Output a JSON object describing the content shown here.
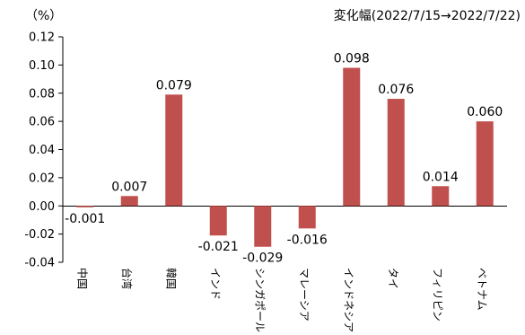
{
  "chart_data": {
    "type": "bar",
    "unit_label": "（%）",
    "title": "変化幅(2022/7/15→2022/7/22)",
    "categories": [
      "中国",
      "台湾",
      "韓国",
      "インド",
      "シンガポール",
      "マレーシア",
      "インドネシア",
      "タイ",
      "フィリピン",
      "ベトナム"
    ],
    "values": [
      -0.001,
      0.007,
      0.079,
      -0.021,
      -0.029,
      -0.016,
      0.098,
      0.076,
      0.014,
      0.06
    ],
    "value_labels": [
      "-0.001",
      "0.007",
      "0.079",
      "-0.021",
      "-0.029",
      "-0.016",
      "0.098",
      "0.076",
      "0.014",
      "0.060"
    ],
    "ylim": [
      -0.04,
      0.12
    ],
    "yticks": [
      "0.12",
      "0.10",
      "0.08",
      "0.06",
      "0.04",
      "0.02",
      "0.00",
      "-0.02",
      "-0.04"
    ],
    "xlabel": "",
    "ylabel": "",
    "bar_color": "#c0504d",
    "grid": false
  }
}
